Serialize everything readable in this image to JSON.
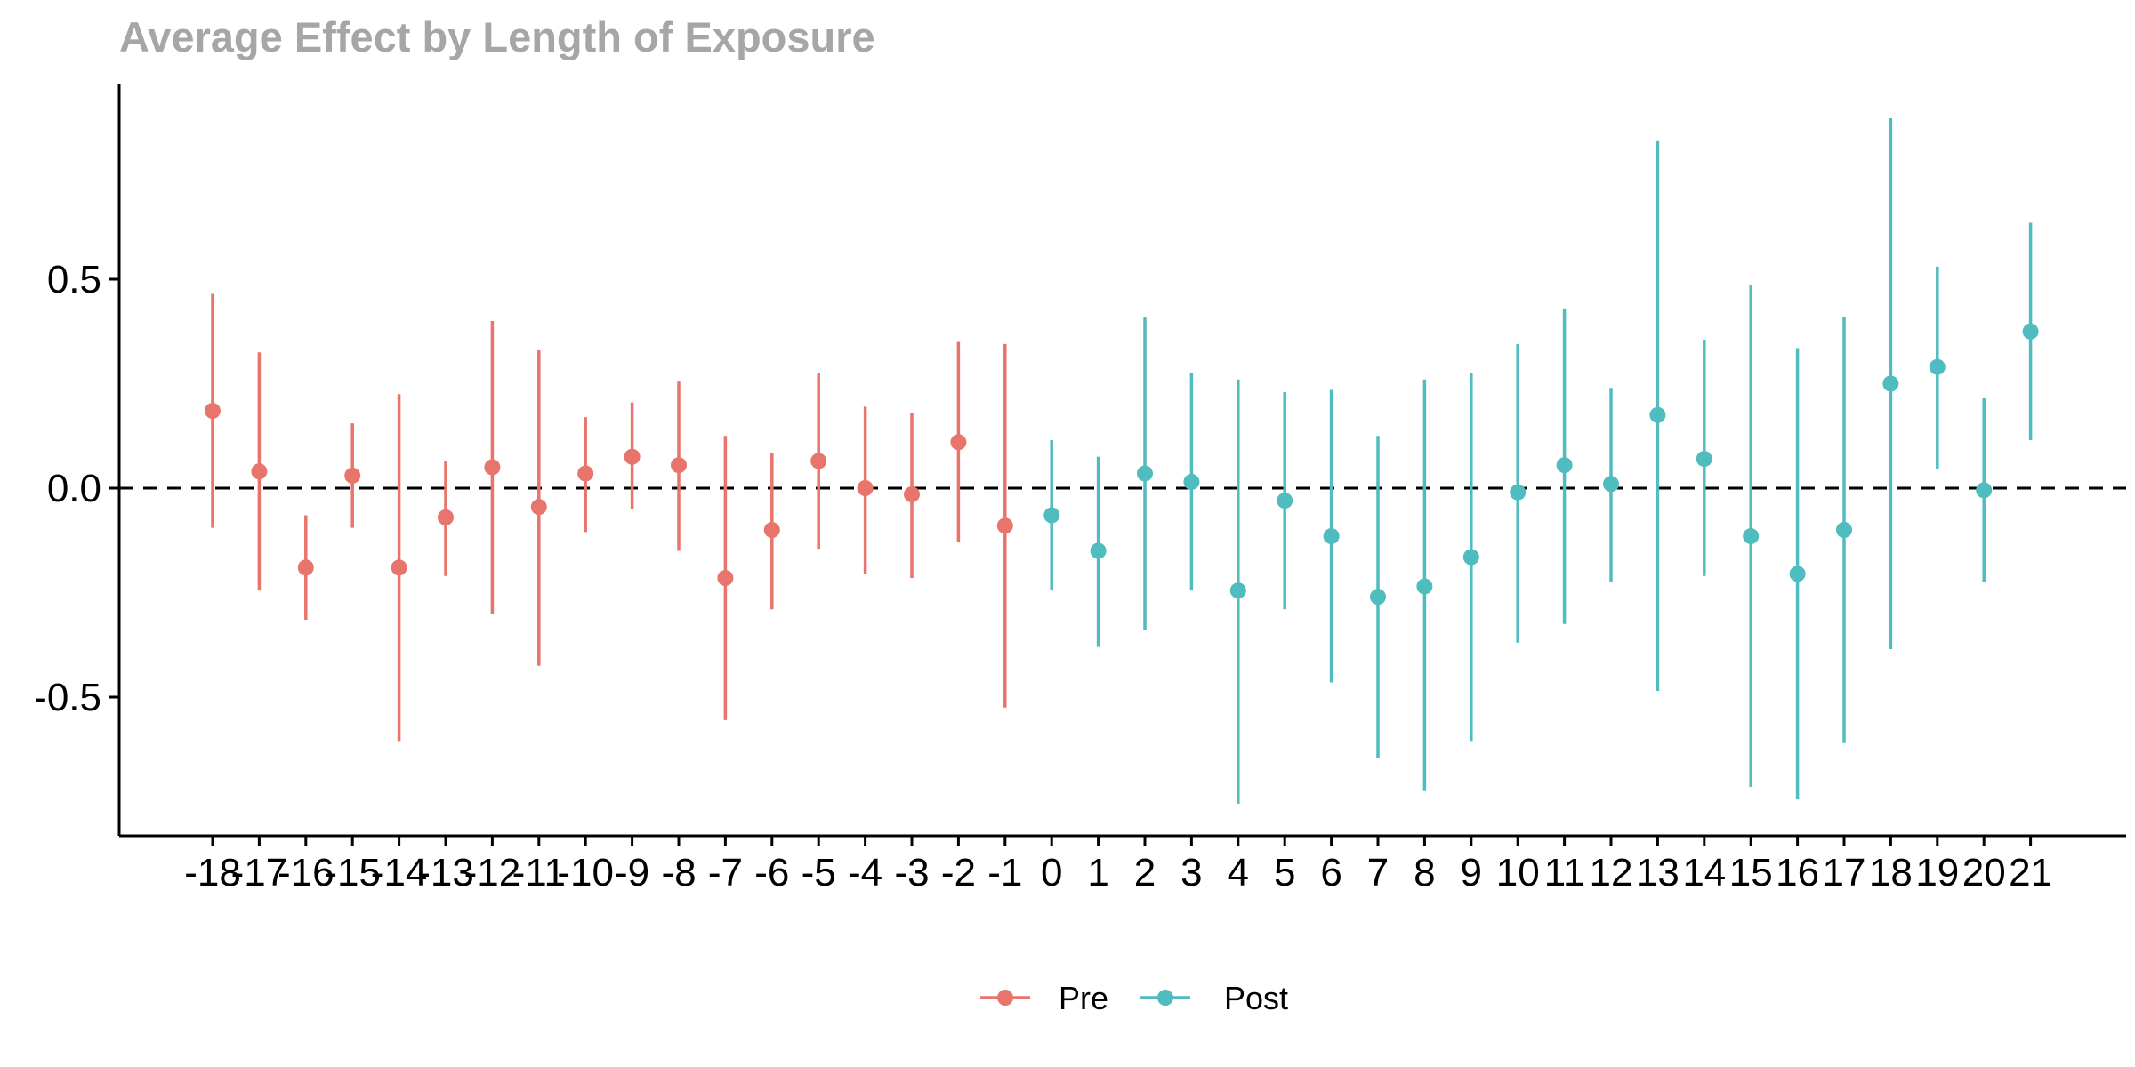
{
  "chart_data": {
    "type": "scatter",
    "title": "Average Effect by Length of Exposure",
    "xlabel": "",
    "ylabel": "",
    "x": [
      -18,
      -17,
      -16,
      -15,
      -14,
      -13,
      -12,
      -11,
      -10,
      -9,
      -8,
      -7,
      -6,
      -5,
      -4,
      -3,
      -2,
      -1,
      0,
      1,
      2,
      3,
      4,
      5,
      6,
      7,
      8,
      9,
      10,
      11,
      12,
      13,
      14,
      15,
      16,
      17,
      18,
      19,
      20,
      21
    ],
    "ylim": [
      -0.83,
      0.96
    ],
    "yticks": [
      -0.5,
      0.0,
      0.5
    ],
    "ytick_labels": [
      "-0.5",
      "0.0",
      "0.5"
    ],
    "reference_line": {
      "y": 0,
      "style": "dashed"
    },
    "legend_position": "bottom",
    "grid": false,
    "series": [
      {
        "name": "Pre",
        "color": "#E8756B",
        "points": [
          {
            "x": -18,
            "y": 0.185,
            "lo": -0.095,
            "hi": 0.465
          },
          {
            "x": -17,
            "y": 0.04,
            "lo": -0.245,
            "hi": 0.325
          },
          {
            "x": -16,
            "y": -0.19,
            "lo": -0.315,
            "hi": -0.065
          },
          {
            "x": -15,
            "y": 0.03,
            "lo": -0.095,
            "hi": 0.155
          },
          {
            "x": -14,
            "y": -0.19,
            "lo": -0.605,
            "hi": 0.225
          },
          {
            "x": -13,
            "y": -0.07,
            "lo": -0.21,
            "hi": 0.065
          },
          {
            "x": -12,
            "y": 0.05,
            "lo": -0.3,
            "hi": 0.4
          },
          {
            "x": -11,
            "y": -0.045,
            "lo": -0.425,
            "hi": 0.33
          },
          {
            "x": -10,
            "y": 0.035,
            "lo": -0.105,
            "hi": 0.17
          },
          {
            "x": -9,
            "y": 0.075,
            "lo": -0.05,
            "hi": 0.205
          },
          {
            "x": -8,
            "y": 0.055,
            "lo": -0.15,
            "hi": 0.255
          },
          {
            "x": -7,
            "y": -0.215,
            "lo": -0.555,
            "hi": 0.125
          },
          {
            "x": -6,
            "y": -0.1,
            "lo": -0.29,
            "hi": 0.085
          },
          {
            "x": -5,
            "y": 0.065,
            "lo": -0.145,
            "hi": 0.275
          },
          {
            "x": -4,
            "y": 0.0,
            "lo": -0.205,
            "hi": 0.195
          },
          {
            "x": -3,
            "y": -0.015,
            "lo": -0.215,
            "hi": 0.18
          },
          {
            "x": -2,
            "y": 0.11,
            "lo": -0.13,
            "hi": 0.35
          },
          {
            "x": -1,
            "y": -0.09,
            "lo": -0.525,
            "hi": 0.345
          }
        ]
      },
      {
        "name": "Post",
        "color": "#4FBCBF",
        "points": [
          {
            "x": 0,
            "y": -0.065,
            "lo": -0.245,
            "hi": 0.115
          },
          {
            "x": 1,
            "y": -0.15,
            "lo": -0.38,
            "hi": 0.075
          },
          {
            "x": 2,
            "y": 0.035,
            "lo": -0.34,
            "hi": 0.41
          },
          {
            "x": 3,
            "y": 0.015,
            "lo": -0.245,
            "hi": 0.275
          },
          {
            "x": 4,
            "y": -0.245,
            "lo": -0.755,
            "hi": 0.26
          },
          {
            "x": 5,
            "y": -0.03,
            "lo": -0.29,
            "hi": 0.23
          },
          {
            "x": 6,
            "y": -0.115,
            "lo": -0.465,
            "hi": 0.235
          },
          {
            "x": 7,
            "y": -0.26,
            "lo": -0.645,
            "hi": 0.125
          },
          {
            "x": 8,
            "y": -0.235,
            "lo": -0.725,
            "hi": 0.26
          },
          {
            "x": 9,
            "y": -0.165,
            "lo": -0.605,
            "hi": 0.275
          },
          {
            "x": 10,
            "y": -0.01,
            "lo": -0.37,
            "hi": 0.345
          },
          {
            "x": 11,
            "y": 0.055,
            "lo": -0.325,
            "hi": 0.43
          },
          {
            "x": 12,
            "y": 0.01,
            "lo": -0.225,
            "hi": 0.24
          },
          {
            "x": 13,
            "y": 0.175,
            "lo": -0.485,
            "hi": 0.83
          },
          {
            "x": 14,
            "y": 0.07,
            "lo": -0.21,
            "hi": 0.355
          },
          {
            "x": 15,
            "y": -0.115,
            "lo": -0.715,
            "hi": 0.485
          },
          {
            "x": 16,
            "y": -0.205,
            "lo": -0.745,
            "hi": 0.335
          },
          {
            "x": 17,
            "y": -0.1,
            "lo": -0.61,
            "hi": 0.41
          },
          {
            "x": 18,
            "y": 0.25,
            "lo": -0.385,
            "hi": 0.885
          },
          {
            "x": 19,
            "y": 0.29,
            "lo": 0.045,
            "hi": 0.53
          },
          {
            "x": 20,
            "y": -0.005,
            "lo": -0.225,
            "hi": 0.215
          },
          {
            "x": 21,
            "y": 0.375,
            "lo": 0.115,
            "hi": 0.635
          }
        ]
      }
    ]
  }
}
